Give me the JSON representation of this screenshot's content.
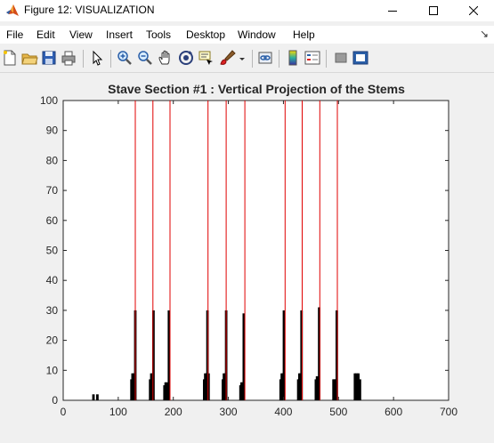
{
  "window": {
    "title": "Figure 12: VISUALIZATION",
    "icon": "matlab-icon",
    "controls": [
      "minimize-icon",
      "maximize-icon",
      "close-icon"
    ]
  },
  "menu": {
    "items": [
      "File",
      "Edit",
      "View",
      "Insert",
      "Tools",
      "Desktop",
      "Window",
      "Help"
    ],
    "dock_icon": "dock-arrow-icon"
  },
  "toolbar": {
    "buttons": [
      "new-figure-icon",
      "open-icon",
      "save-icon",
      "print-icon",
      "pointer-icon",
      "zoom-in-icon",
      "zoom-out-icon",
      "pan-icon",
      "rotate-3d-icon",
      "data-cursor-icon",
      "brush-icon",
      "link-plot-icon",
      "colorbar-icon",
      "legend-icon",
      "hide-plot-tools-icon",
      "show-plot-tools-icon"
    ]
  },
  "chart_data": {
    "type": "bar",
    "title": "Stave Section #1 : Vertical Projection of the Stems",
    "xlabel": "",
    "ylabel": "",
    "xlim": [
      0,
      700
    ],
    "ylim": [
      0,
      100
    ],
    "xticks": [
      "0",
      "100",
      "200",
      "300",
      "400",
      "500",
      "600",
      "700"
    ],
    "yticks": [
      "0",
      "10",
      "20",
      "30",
      "40",
      "50",
      "60",
      "70",
      "80",
      "90",
      "100"
    ],
    "grid": false,
    "colors": {
      "projection": "#000000",
      "stems": "#e00000"
    },
    "series": [
      {
        "style": "bars",
        "x": [
          55,
          62,
          124,
          126,
          128,
          131,
          158,
          160,
          162,
          164,
          184,
          186,
          188,
          190,
          192,
          256,
          258,
          260,
          262,
          264,
          290,
          292,
          294,
          296,
          322,
          324,
          326,
          328,
          395,
          397,
          399,
          401,
          427,
          429,
          431,
          433,
          459,
          461,
          463,
          465,
          491,
          493,
          495,
          497,
          530,
          533,
          536,
          539
        ],
        "values": [
          2,
          2,
          7,
          9,
          9,
          30,
          7,
          9,
          9,
          30,
          5,
          6,
          6,
          5,
          30,
          7,
          9,
          9,
          30,
          9,
          7,
          9,
          9,
          30,
          5,
          6,
          6,
          29,
          7,
          9,
          9,
          30,
          7,
          9,
          9,
          30,
          7,
          8,
          8,
          31,
          7,
          7,
          7,
          30,
          9,
          9,
          9,
          7
        ]
      },
      {
        "style": "vertical-lines",
        "x": [
          131,
          163,
          194,
          263,
          296,
          330,
          403,
          434,
          466,
          498
        ]
      }
    ]
  }
}
